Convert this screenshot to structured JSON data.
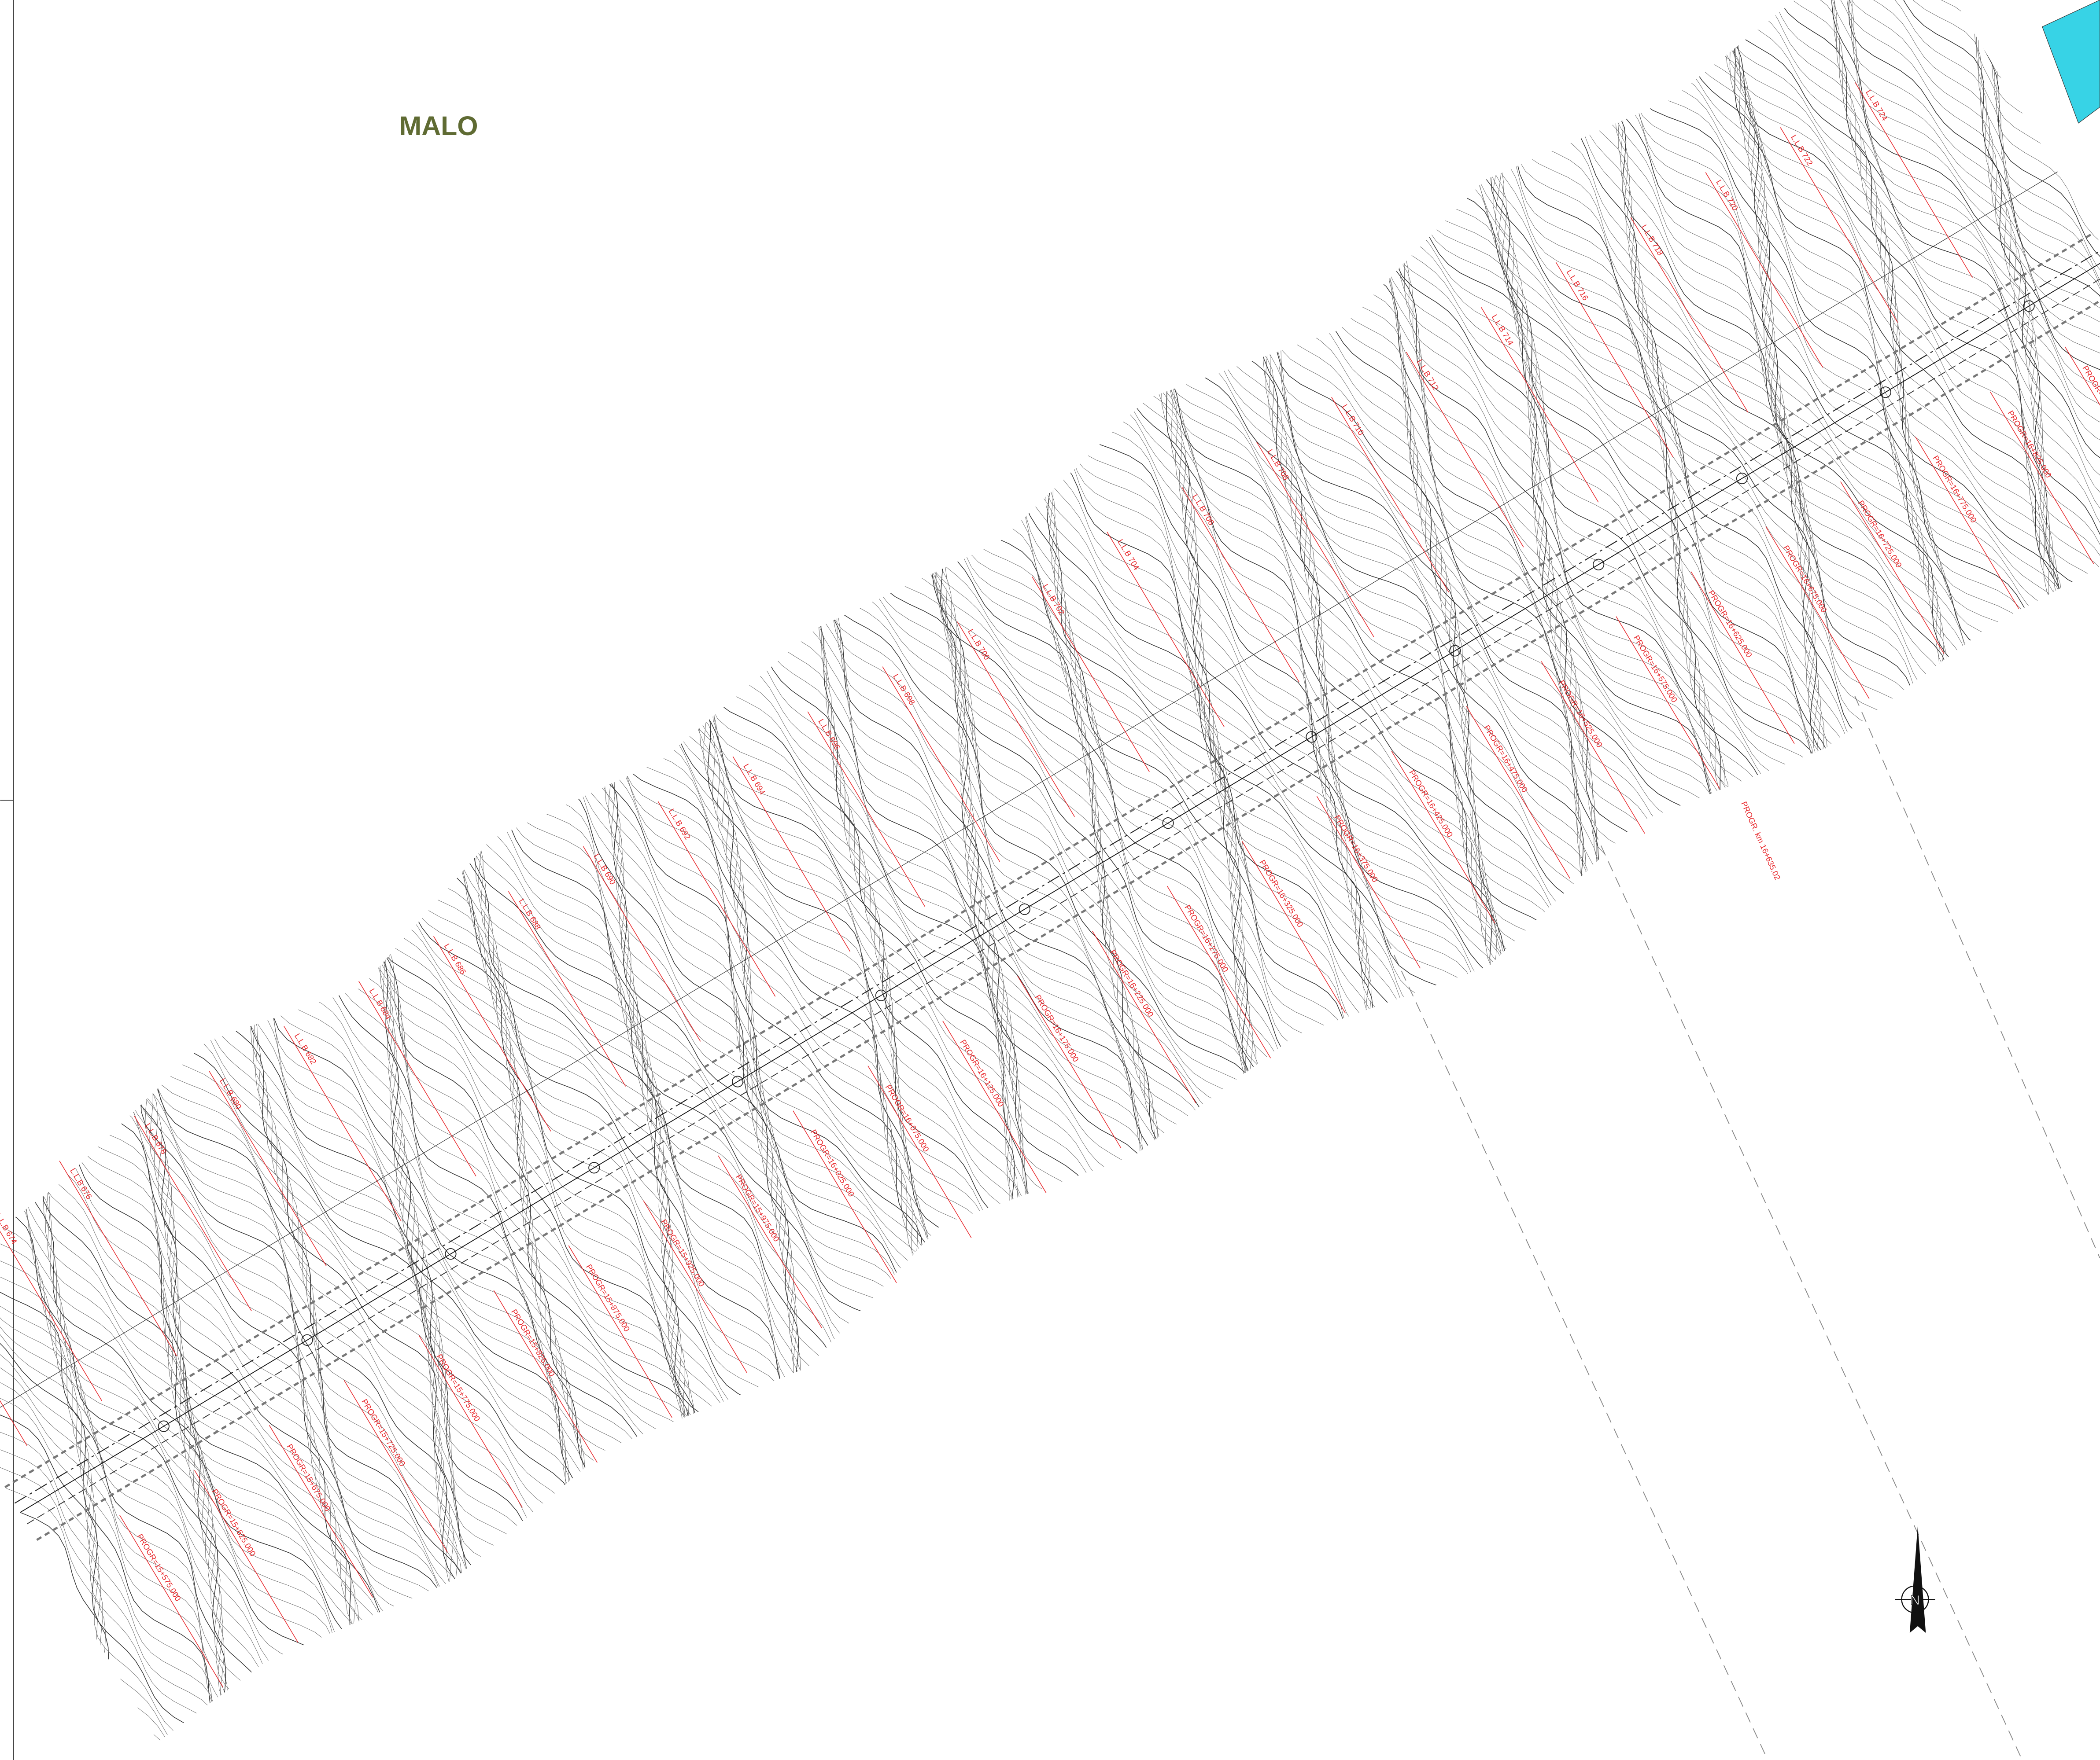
{
  "header": {
    "title": "MALO"
  },
  "annotations": {
    "progressive": "PROGR. km 16+635.02",
    "north": "N"
  },
  "sections_north": [
    "L.L.B 672",
    "L.L.B 674",
    "L.L.B 676",
    "L.L.B 678",
    "L.L.B 680",
    "L.L.B 682",
    "L.L.B 684",
    "L.L.B 686",
    "L.L.B 688",
    "L.L.B 690",
    "L.L.B 692",
    "L.L.B 694",
    "L.L.B 696",
    "L.L.B 698",
    "L.L.B 700",
    "L.L.B 702",
    "L.L.B 704",
    "L.L.B 706",
    "L.L.B 708",
    "L.L.B 710",
    "L.L.B 712",
    "L.L.B 714",
    "L.L.B 716",
    "L.L.B 718",
    "L.L.B 720",
    "L.L.B 722",
    "L.L.B 724"
  ],
  "sections_south": [
    "PROGR=15+575.000",
    "PROGR=15+625.000",
    "PROGR=15+675.000",
    "PROGR=15+725.000",
    "PROGR=15+775.000",
    "PROGR=15+825.000",
    "PROGR=15+875.000",
    "PROGR=15+925.000",
    "PROGR=15+975.000",
    "PROGR=16+025.000",
    "PROGR=16+075.000",
    "PROGR=16+125.000",
    "PROGR=16+175.000",
    "PROGR=16+225.000",
    "PROGR=16+275.000",
    "PROGR=16+325.000",
    "PROGR=16+375.000",
    "PROGR=16+425.000",
    "PROGR=16+475.000",
    "PROGR=16+525.000",
    "PROGR=16+575.000",
    "PROGR=16+625.000",
    "PROGR=16+675.000",
    "PROGR=16+725.000",
    "PROGR=16+775.000",
    "PROGR=16+825.000",
    "PROGR=16+875.000"
  ]
}
